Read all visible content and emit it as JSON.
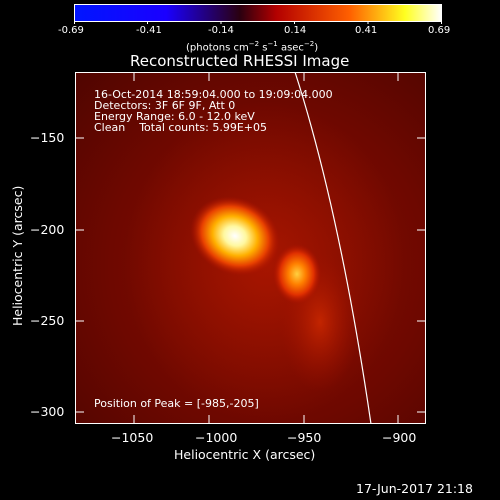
{
  "colorbar": {
    "ticks": [
      "-0.69",
      "-0.41",
      "-0.14",
      "0.14",
      "0.41",
      "0.69"
    ],
    "unit_label_parts": [
      "(photons cm",
      "−2",
      " s",
      "−1",
      " asec",
      "−2",
      ")"
    ],
    "colors": [
      "#0000ff",
      "#000000",
      "#ff0000",
      "#ffff00",
      "#ffffff"
    ]
  },
  "plot": {
    "title": "Reconstructed RHESSI Image",
    "info_lines": [
      "16-Oct-2014 18:59:04.000 to 19:09:04.000",
      "Detectors: 3F 6F 9F, Att 0",
      "Energy Range: 6.0 - 12.0 keV",
      "Clean    Total counts: 5.99E+05"
    ],
    "peak_text": "Position of Peak = [-985,-205]",
    "xlabel": "Heliocentric X (arcsec)",
    "ylabel": "Heliocentric Y (arcsec)",
    "xticks": [
      "−1050",
      "−1000",
      "−950",
      "−900"
    ],
    "yticks": [
      "−150",
      "−200",
      "−250",
      "−300"
    ]
  },
  "footer": {
    "timestamp": "17-Jun-2017 21:18"
  }
}
